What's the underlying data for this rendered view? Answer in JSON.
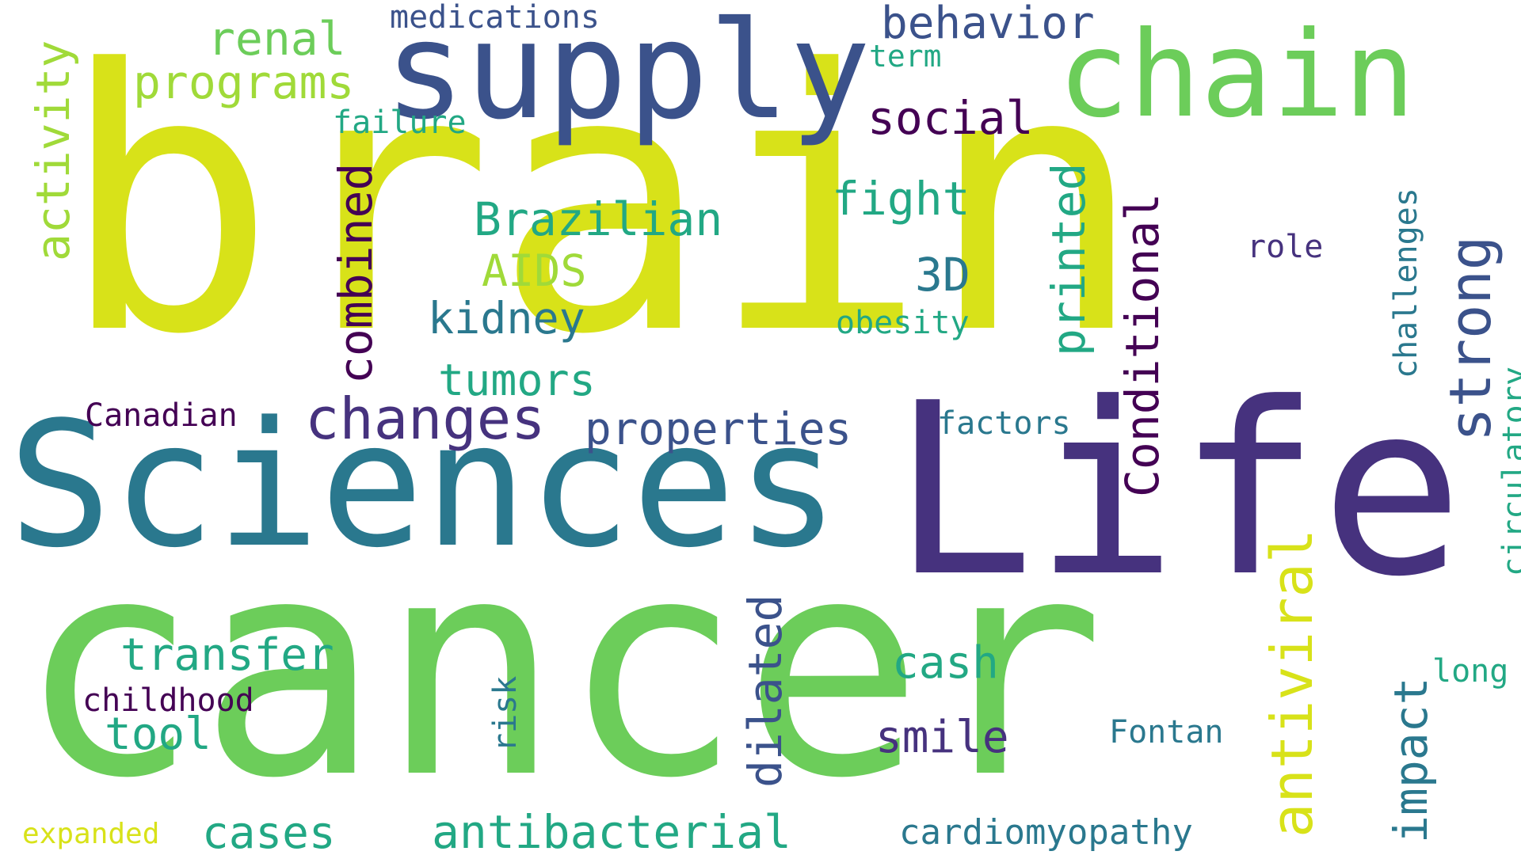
{
  "palette": {
    "yellow": "#d8e219",
    "green": "#6ccd5a",
    "teal": "#2a788e",
    "blue": "#3b528b",
    "purple": "#46327e",
    "dark": "#440154",
    "sea": "#22a884",
    "light_green": "#a0da39"
  },
  "words": {
    "brain": "brain",
    "cancer": "cancer",
    "life": "Life",
    "sciences": "Sciences",
    "supply": "supply",
    "chain": "chain",
    "medications": "medications",
    "behavior": "behavior",
    "renal": "renal",
    "term": "term",
    "programs": "programs",
    "failure": "failure",
    "social": "social",
    "activity": "activity",
    "combined": "combined",
    "brazilian": "Brazilian",
    "fight": "fight",
    "printed": "printed",
    "conditional": "Conditional",
    "challenges": "challenges",
    "strong": "strong",
    "aids": "AIDS",
    "three_d": "3D",
    "role": "role",
    "kidney": "kidney",
    "obesity": "obesity",
    "tumors": "tumors",
    "changes": "changes",
    "canadian": "Canadian",
    "properties": "properties",
    "factors": "factors",
    "circulatory": "circulatory",
    "antiviral": "antiviral",
    "transfer": "transfer",
    "cash": "cash",
    "dilated": "dilated",
    "childhood": "childhood",
    "tool": "tool",
    "risk": "risk",
    "smile": "smile",
    "fontan": "Fontan",
    "impact": "impact",
    "long": "long",
    "expanded": "expanded",
    "cases": "cases",
    "antibacterial": "antibacterial",
    "cardiomyopathy": "cardiomyopathy"
  }
}
